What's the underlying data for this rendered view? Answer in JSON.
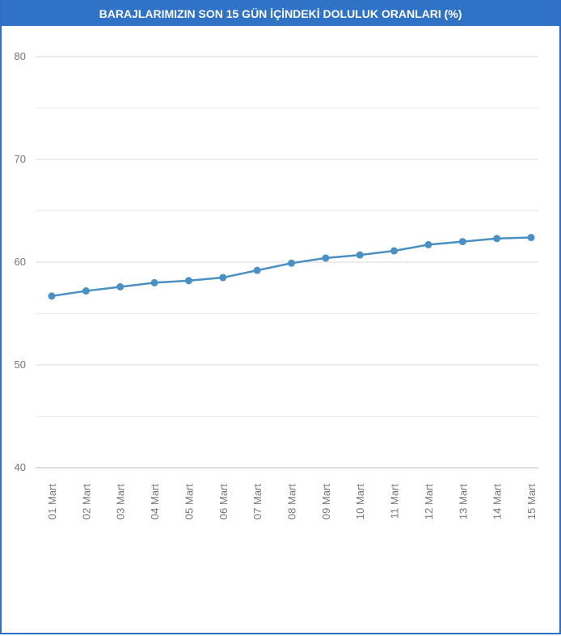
{
  "chart_data": {
    "type": "line",
    "title": "BARAJLARIMIZIN SON 15 GÜN İÇİNDEKİ DOLULUK ORANLARI (%)",
    "categories": [
      "01 Mart",
      "02 Mart",
      "03 Mart",
      "04 Mart",
      "05 Mart",
      "06 Mart",
      "07 Mart",
      "08 Mart",
      "09 Mart",
      "10 Mart",
      "11 Mart",
      "12 Mart",
      "13 Mart",
      "14 Mart",
      "15 Mart"
    ],
    "values": [
      56.7,
      57.2,
      57.6,
      58.0,
      58.2,
      58.5,
      59.2,
      59.9,
      60.4,
      60.7,
      61.1,
      61.7,
      62.0,
      62.3,
      62.4
    ],
    "color": "#4a90c2",
    "ylim": [
      40,
      80
    ],
    "yticks": [
      40,
      50,
      60,
      70,
      80
    ],
    "minor_yticks": [
      45,
      55,
      65,
      75
    ],
    "grid": true
  }
}
